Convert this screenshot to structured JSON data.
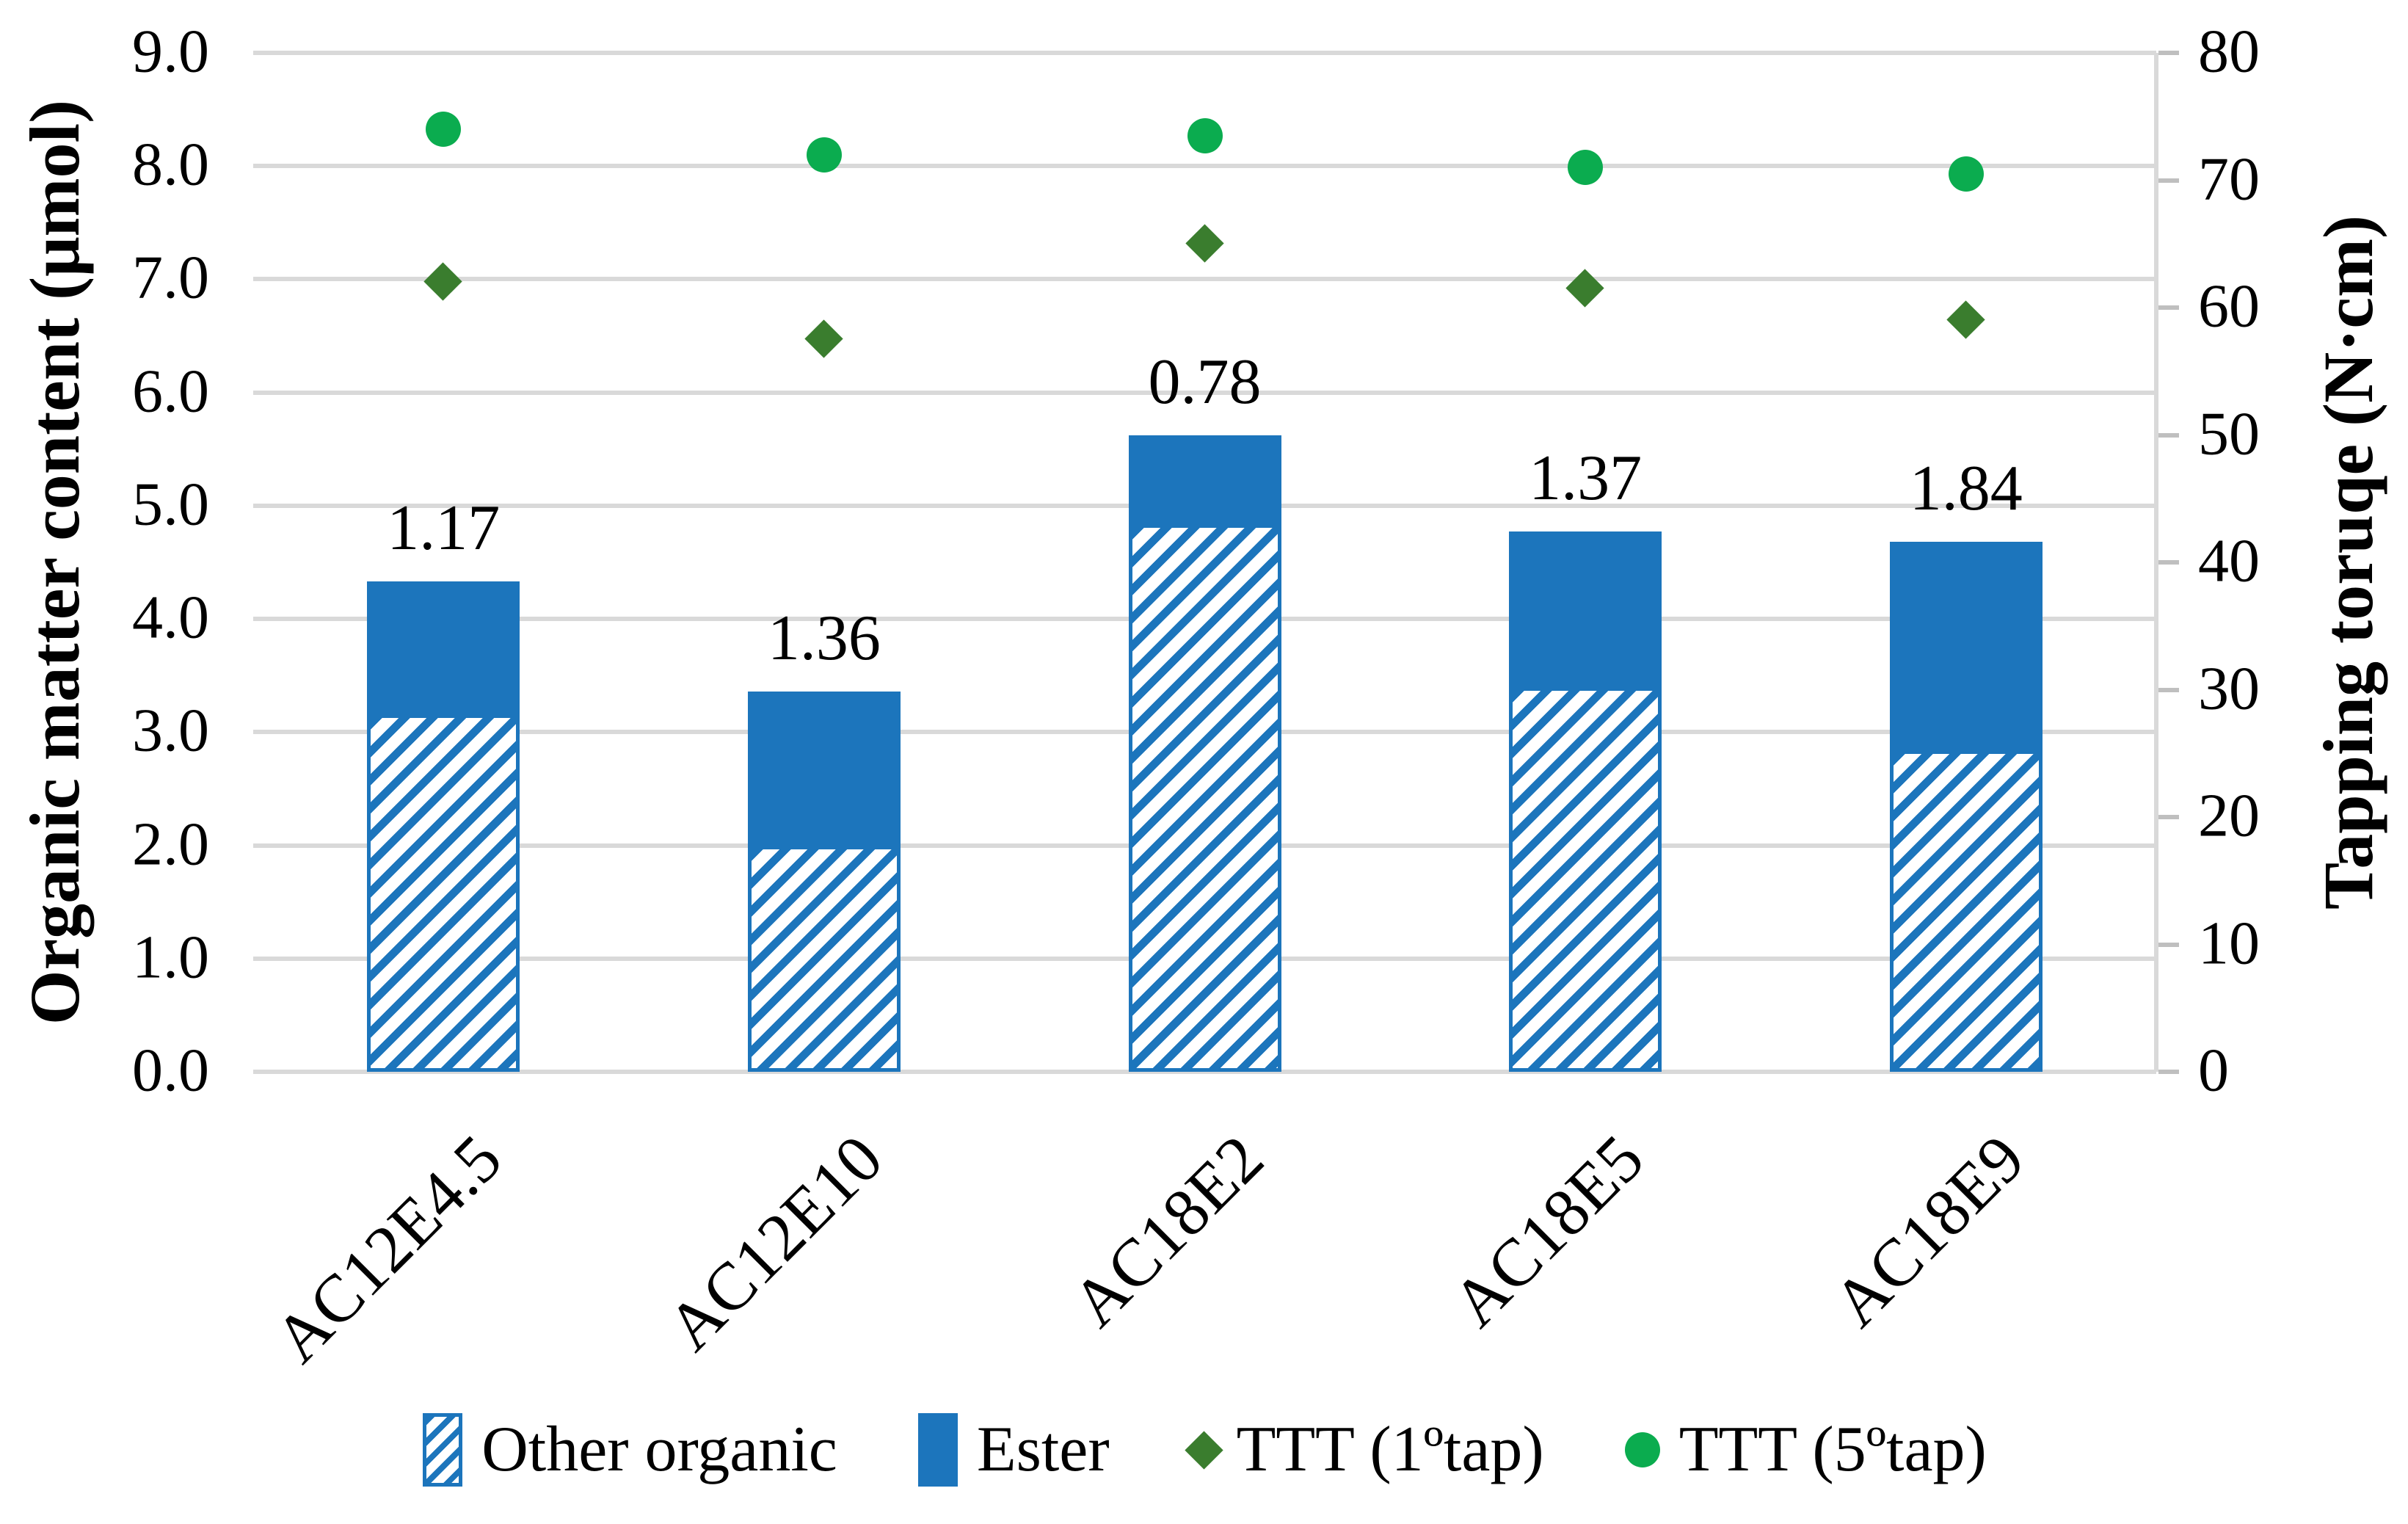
{
  "chart_data": {
    "type": "bar",
    "subtype": "stacked-bar-with-scatter-overlay",
    "categories": [
      "AC12E4.5",
      "AC12E10",
      "AC18E2",
      "AC18E5",
      "AC18E9"
    ],
    "series": [
      {
        "name": "Other organic",
        "type": "bar",
        "style": "hatched",
        "axis": "left",
        "values": [
          3.16,
          2.0,
          4.84,
          3.4,
          2.84
        ]
      },
      {
        "name": "Ester",
        "type": "bar",
        "style": "solid",
        "axis": "left",
        "values": [
          1.17,
          1.36,
          0.78,
          1.37,
          1.84
        ],
        "data_labels": [
          "1.17",
          "1.36",
          "0.78",
          "1.37",
          "1.84"
        ]
      },
      {
        "name": "TTT (1ºtap)",
        "type": "scatter",
        "marker": "diamond",
        "axis": "right",
        "values": [
          62,
          57.5,
          65,
          61.5,
          59
        ]
      },
      {
        "name": "TTT (5ºtap)",
        "type": "scatter",
        "marker": "circle",
        "axis": "right",
        "values": [
          74,
          72,
          73.5,
          71,
          70.5
        ]
      }
    ],
    "stacked_totals": [
      4.33,
      3.36,
      5.62,
      4.77,
      4.68
    ],
    "left_axis": {
      "title": "Organic matter content (μmol)",
      "min": 0.0,
      "max": 9.0,
      "step": 1.0,
      "ticks": [
        "9.0",
        "8.0",
        "7.0",
        "6.0",
        "5.0",
        "4.0",
        "3.0",
        "2.0",
        "1.0",
        "0.0"
      ]
    },
    "right_axis": {
      "title": "Tapping toruqe (N·cm)",
      "min": 0,
      "max": 80,
      "step": 10,
      "ticks": [
        "80",
        "70",
        "60",
        "50",
        "40",
        "30",
        "20",
        "10",
        "0"
      ]
    },
    "grid": "horizontal",
    "legend_position": "bottom"
  },
  "colors": {
    "bar_blue": "#1C75BC",
    "diamond_green": "#3A7D2E",
    "circle_green": "#0BAC4F",
    "gridline": "#D9D9D9",
    "axis_line": "#D9D9D9",
    "tick_mark": "#BFBFBF",
    "text": "#000000",
    "background": "#FFFFFF"
  }
}
